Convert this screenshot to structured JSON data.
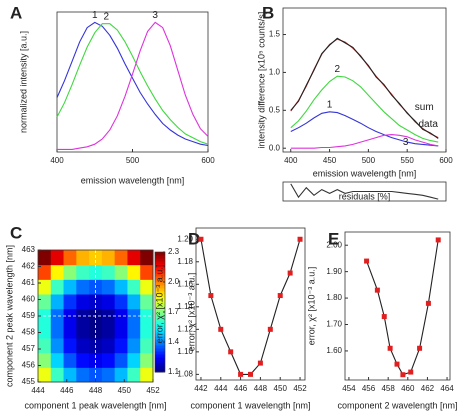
{
  "chart_data": [
    {
      "type": "line",
      "letter": "A",
      "xlabel": "emission wavelength [nm]",
      "ylabel": "normalized intensity [a.u.]",
      "xlim": [
        400,
        600
      ],
      "ylim": [
        0,
        1.08
      ],
      "xticks": [
        400,
        500,
        600
      ],
      "x": [
        400,
        410,
        420,
        430,
        440,
        450,
        460,
        470,
        480,
        490,
        500,
        510,
        520,
        530,
        540,
        550,
        560,
        570,
        580,
        590,
        600
      ],
      "series": [
        {
          "name": "1",
          "color": "#3434d8",
          "values": [
            0.42,
            0.55,
            0.7,
            0.85,
            0.96,
            1.0,
            0.97,
            0.9,
            0.8,
            0.68,
            0.57,
            0.46,
            0.37,
            0.29,
            0.22,
            0.17,
            0.13,
            0.1,
            0.08,
            0.06,
            0.05
          ]
        },
        {
          "name": "2",
          "color": "#3fd83f",
          "values": [
            0.27,
            0.38,
            0.52,
            0.67,
            0.81,
            0.92,
            0.99,
            0.99,
            0.94,
            0.85,
            0.74,
            0.62,
            0.51,
            0.41,
            0.32,
            0.25,
            0.19,
            0.14,
            0.11,
            0.08,
            0.06
          ]
        },
        {
          "name": "3",
          "color": "#dd33dd",
          "values": [
            0.02,
            0.02,
            0.02,
            0.03,
            0.04,
            0.06,
            0.1,
            0.17,
            0.28,
            0.43,
            0.6,
            0.78,
            0.93,
            1.0,
            0.96,
            0.82,
            0.63,
            0.44,
            0.29,
            0.18,
            0.12
          ]
        }
      ]
    },
    {
      "type": "line",
      "letter": "B",
      "xlabel": "emission wavelength [nm]",
      "ylabel": "intensity difference [x10⁵ counts/s]",
      "xlim": [
        390,
        600
      ],
      "ylim": [
        -0.05,
        1.85
      ],
      "xticks": [
        400,
        450,
        500,
        550,
        600
      ],
      "yticks": [
        {
          "value": 0,
          "label": "0.0"
        },
        0.5,
        {
          "value": 1,
          "label": "1.0"
        },
        1.5
      ],
      "x": [
        400,
        410,
        420,
        430,
        440,
        450,
        460,
        470,
        480,
        490,
        500,
        510,
        520,
        530,
        540,
        550,
        560,
        570,
        580,
        590
      ],
      "series": [
        {
          "name": "1",
          "color": "#3434d8",
          "values": [
            0.22,
            0.27,
            0.33,
            0.4,
            0.46,
            0.48,
            0.47,
            0.43,
            0.38,
            0.33,
            0.27,
            0.22,
            0.18,
            0.14,
            0.11,
            0.08,
            0.06,
            0.05,
            0.04,
            0.03
          ]
        },
        {
          "name": "2",
          "color": "#3fd83f",
          "values": [
            0.27,
            0.36,
            0.49,
            0.64,
            0.77,
            0.88,
            0.95,
            0.94,
            0.89,
            0.81,
            0.7,
            0.59,
            0.48,
            0.39,
            0.3,
            0.24,
            0.18,
            0.13,
            0.1,
            0.08
          ]
        },
        {
          "name": "3",
          "color": "#dd33dd",
          "values": [
            0,
            0,
            0,
            0,
            0.01,
            0.01,
            0.02,
            0.03,
            0.05,
            0.08,
            0.11,
            0.14,
            0.17,
            0.18,
            0.17,
            0.15,
            0.11,
            0.08,
            0.05,
            0.03
          ]
        },
        {
          "name": "sum",
          "color": "#cc2222",
          "values": [
            0.49,
            0.63,
            0.82,
            1.04,
            1.24,
            1.37,
            1.44,
            1.4,
            1.32,
            1.22,
            1.08,
            0.95,
            0.83,
            0.71,
            0.58,
            0.47,
            0.35,
            0.26,
            0.19,
            0.14
          ]
        },
        {
          "name": "data",
          "color": "#222222",
          "values": [
            0.5,
            0.62,
            0.83,
            1.03,
            1.25,
            1.36,
            1.45,
            1.39,
            1.33,
            1.21,
            1.09,
            0.94,
            0.84,
            0.7,
            0.59,
            0.46,
            0.36,
            0.25,
            0.2,
            0.13
          ]
        }
      ]
    },
    {
      "type": "line",
      "xlabel": "residuals [%]",
      "xlim": [
        390,
        600
      ],
      "ylim": [
        -5,
        5
      ],
      "x": [
        400,
        410,
        420,
        430,
        440,
        450,
        460,
        470,
        480,
        490,
        500,
        510,
        520,
        530,
        540,
        550,
        560,
        570,
        580,
        590
      ],
      "series": [
        {
          "color": "#333333",
          "values": [
            4,
            -3,
            2,
            -2,
            1,
            -1,
            1,
            -1,
            0,
            0,
            0,
            0,
            0,
            0,
            -0.5,
            -1,
            -1.5,
            -2,
            -3,
            -4
          ]
        }
      ]
    },
    {
      "type": "heatmap",
      "letter": "C",
      "xlabel": "component 1 peak wavelength [nm]",
      "ylabel": "component 2 peak wavelength [nm]",
      "colorbar_label": "error, χ² [x10⁻³ a.u.]",
      "xlim": [
        444,
        452
      ],
      "ylim": [
        455,
        463
      ],
      "xticks": [
        444,
        446,
        448,
        450,
        452
      ],
      "yticks": [
        455,
        456,
        457,
        458,
        459,
        460,
        461,
        462,
        463
      ],
      "zlim": [
        1.1,
        2.3
      ],
      "zticks": [
        1.1,
        1.4,
        1.7,
        {
          "value": 2,
          "label": "2.0"
        },
        2.3
      ],
      "crosshair": {
        "x": 448,
        "y": 459
      },
      "x": [
        444,
        445,
        446,
        447,
        448,
        449,
        450,
        451,
        452
      ],
      "y": [
        455,
        456,
        457,
        458,
        459,
        460,
        461,
        462,
        463
      ],
      "z": [
        [
          1.83,
          1.62,
          1.47,
          1.38,
          1.35,
          1.38,
          1.47,
          1.62,
          1.83
        ],
        [
          1.71,
          1.5,
          1.35,
          1.26,
          1.23,
          1.26,
          1.35,
          1.5,
          1.71
        ],
        [
          1.63,
          1.42,
          1.27,
          1.18,
          1.15,
          1.18,
          1.27,
          1.42,
          1.63
        ],
        [
          1.59,
          1.38,
          1.23,
          1.14,
          1.11,
          1.14,
          1.23,
          1.38,
          1.59
        ],
        [
          1.59,
          1.38,
          1.23,
          1.14,
          1.11,
          1.14,
          1.23,
          1.38,
          1.59
        ],
        [
          1.67,
          1.46,
          1.31,
          1.22,
          1.19,
          1.22,
          1.31,
          1.46,
          1.67
        ],
        [
          1.83,
          1.62,
          1.47,
          1.38,
          1.35,
          1.38,
          1.47,
          1.62,
          1.83
        ],
        [
          2.07,
          1.86,
          1.71,
          1.62,
          1.59,
          1.62,
          1.71,
          1.86,
          2.07
        ],
        [
          2.3,
          2.18,
          2.03,
          1.94,
          1.91,
          1.94,
          2.03,
          2.18,
          2.3
        ]
      ]
    },
    {
      "type": "line",
      "letter": "D",
      "xlabel": "component 1 wavelength [nm]",
      "ylabel": "error, χ² [x10⁻³ a.u.]",
      "xlim": [
        441.5,
        452.5
      ],
      "ylim": [
        1.075,
        1.21
      ],
      "markers": true,
      "marker_color": "#e02020",
      "xticks": [
        442,
        444,
        446,
        448,
        450,
        452
      ],
      "yticks": [
        {
          "value": 1.08,
          "label": "1.08"
        },
        {
          "value": 1.1,
          "label": "1.10"
        },
        {
          "value": 1.12,
          "label": "1.12"
        },
        {
          "value": 1.14,
          "label": "1.14"
        },
        {
          "value": 1.16,
          "label": "1.16"
        },
        {
          "value": 1.18,
          "label": "1.18"
        },
        {
          "value": 1.2,
          "label": "1.20"
        }
      ],
      "x": [
        442,
        443,
        444,
        445,
        446,
        447,
        448,
        449,
        450,
        451,
        452
      ],
      "series": [
        {
          "color": "#222222",
          "values": [
            1.2,
            1.15,
            1.12,
            1.1,
            1.08,
            1.08,
            1.09,
            1.12,
            1.15,
            1.17,
            1.2
          ]
        }
      ]
    },
    {
      "type": "line",
      "letter": "E",
      "xlabel": "component 2 wavelength [nm]",
      "ylabel": "error, χ² [x10⁻³ a.u.]",
      "xlim": [
        453.6,
        464.3
      ],
      "ylim": [
        1.49,
        2.05
      ],
      "markers": true,
      "marker_color": "#e02020",
      "xticks": [
        454,
        456,
        458,
        460,
        462,
        464
      ],
      "yticks": [
        {
          "value": 1.6,
          "label": "1.60"
        },
        {
          "value": 1.7,
          "label": "1.70"
        },
        {
          "value": 1.8,
          "label": "1.80"
        },
        {
          "value": 1.9,
          "label": "1.90"
        },
        {
          "value": 2,
          "label": "2.00"
        }
      ],
      "x": [
        455.8,
        456.9,
        457.6,
        458.2,
        458.9,
        459.5,
        460.3,
        461.2,
        462.1,
        463.1
      ],
      "series": [
        {
          "color": "#222222",
          "values": [
            1.94,
            1.83,
            1.73,
            1.61,
            1.55,
            1.51,
            1.52,
            1.61,
            1.78,
            2.02
          ]
        }
      ]
    }
  ]
}
